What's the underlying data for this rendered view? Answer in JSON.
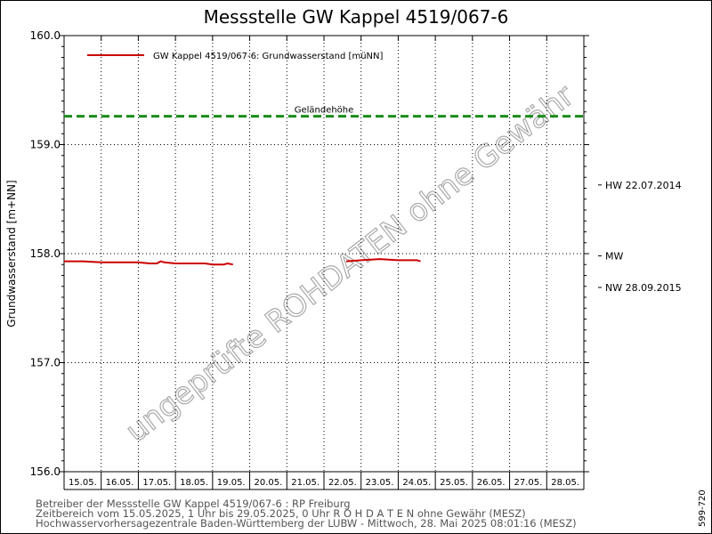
{
  "title": "Messstelle GW Kappel 4519/067-6",
  "ylabel": "Grundwasserstand [m+NN]",
  "legend_label": "GW Kappel 4519/067-6: Grundwasserstand  [müNN]",
  "gelaende_label": "Geländehöhe",
  "watermark": "ungeprüfte ROHDATEN ohne Gewähr",
  "side_code": "599-720",
  "footer": {
    "line1": "Betreiber der Messstelle GW Kappel 4519/067-6 : RP Freiburg",
    "line2": "Zeitbereich vom 15.05.2025, 1 Uhr bis 29.05.2025, 0 Uhr    R O H D A T E N ohne Gewähr (MESZ)",
    "line3": "Hochwasservorhersagezentrale Baden-Württemberg der LUBW - Mittwoch, 28. Mai 2025 08:01:16 (MESZ)"
  },
  "colors": {
    "series": "#cc0000",
    "gelaende": "#1a8c1a"
  },
  "chart_data": {
    "type": "line",
    "title": "Messstelle GW Kappel 4519/067-6",
    "xlabel": "",
    "ylabel": "Grundwasserstand [m+NN]",
    "ylim": [
      156.0,
      160.0
    ],
    "yticks": [
      156.0,
      157.0,
      158.0,
      159.0,
      160.0
    ],
    "ytick_labels": [
      "156.0",
      "157.0",
      "158.0",
      "159.0",
      "160.0"
    ],
    "x_categories": [
      "15.05.",
      "16.05.",
      "17.05.",
      "18.05.",
      "19.05.",
      "20.05.",
      "21.05.",
      "22.05.",
      "23.05.",
      "24.05.",
      "25.05.",
      "26.05.",
      "27.05.",
      "28.05."
    ],
    "grid": true,
    "legend_position": "top-left",
    "series": [
      {
        "name": "GW Kappel 4519/067-6: Grundwasserstand  [müNN]",
        "segments": [
          [
            [
              0.0,
              157.93
            ],
            [
              0.5,
              157.93
            ],
            [
              1.0,
              157.92
            ],
            [
              1.5,
              157.92
            ],
            [
              2.0,
              157.92
            ],
            [
              2.3,
              157.91
            ],
            [
              2.5,
              157.91
            ],
            [
              2.6,
              157.93
            ],
            [
              2.7,
              157.92
            ],
            [
              3.0,
              157.91
            ],
            [
              3.5,
              157.91
            ],
            [
              3.8,
              157.91
            ],
            [
              4.0,
              157.9
            ],
            [
              4.3,
              157.9
            ],
            [
              4.4,
              157.91
            ],
            [
              4.55,
              157.9
            ]
          ],
          [
            [
              7.6,
              157.93
            ],
            [
              8.0,
              157.94
            ],
            [
              8.5,
              157.95
            ],
            [
              9.0,
              157.94
            ],
            [
              9.5,
              157.94
            ],
            [
              9.6,
              157.93
            ]
          ]
        ]
      }
    ],
    "reference_lines": [
      {
        "name": "Geländehöhe",
        "value": 159.26,
        "style": "dashed"
      }
    ],
    "right_markers": [
      {
        "label": "HW 22.07.2014",
        "value": 158.63
      },
      {
        "label": "MW",
        "value": 157.98
      },
      {
        "label": "NW 28.09.2015",
        "value": 157.69
      }
    ]
  }
}
